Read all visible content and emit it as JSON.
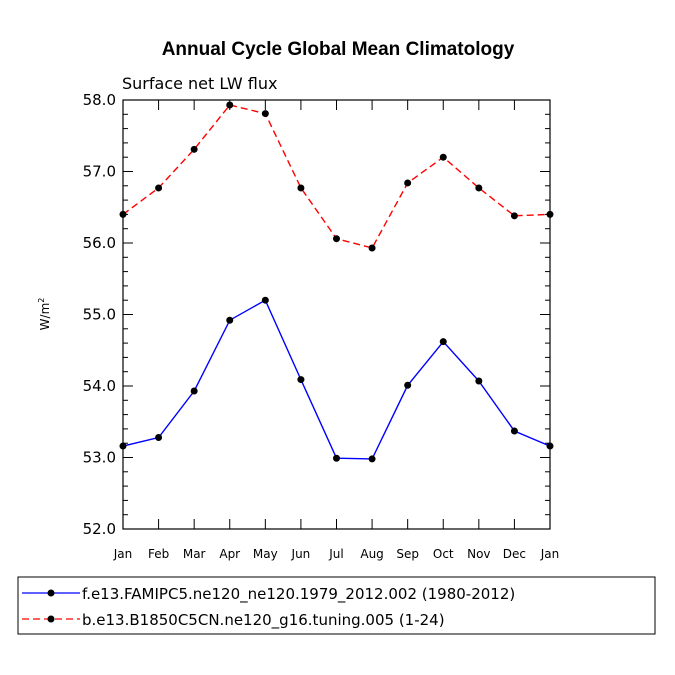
{
  "chart_data": {
    "type": "line",
    "title": "Annual Cycle Global Mean Climatology",
    "subtitle": "Surface net LW flux",
    "ylabel_base": "W/m",
    "ylabel_sup": "2",
    "ylim": [
      52.0,
      58.0
    ],
    "yticks": [
      "52.0",
      "53.0",
      "54.0",
      "55.0",
      "56.0",
      "57.0",
      "58.0"
    ],
    "categories": [
      "Jan",
      "Feb",
      "Mar",
      "Apr",
      "May",
      "Jun",
      "Jul",
      "Aug",
      "Sep",
      "Oct",
      "Nov",
      "Dec",
      "Jan"
    ],
    "series": [
      {
        "name": "f.e13.FAMIPC5.ne120_ne120.1979_2012.002 (1980-2012)",
        "color": "#0000ff",
        "dash": "solid",
        "values": [
          53.16,
          53.28,
          53.93,
          54.92,
          55.2,
          54.09,
          52.99,
          52.98,
          54.01,
          54.62,
          54.07,
          53.37,
          53.16
        ]
      },
      {
        "name": "b.e13.B1850C5CN.ne120_g16.tuning.005 (1-24)",
        "color": "#ff0000",
        "dash": "dashed",
        "values": [
          56.4,
          56.77,
          57.31,
          57.93,
          57.81,
          56.77,
          56.06,
          55.93,
          56.84,
          57.2,
          56.77,
          56.38,
          56.4
        ]
      }
    ],
    "legend_position": "bottom"
  }
}
